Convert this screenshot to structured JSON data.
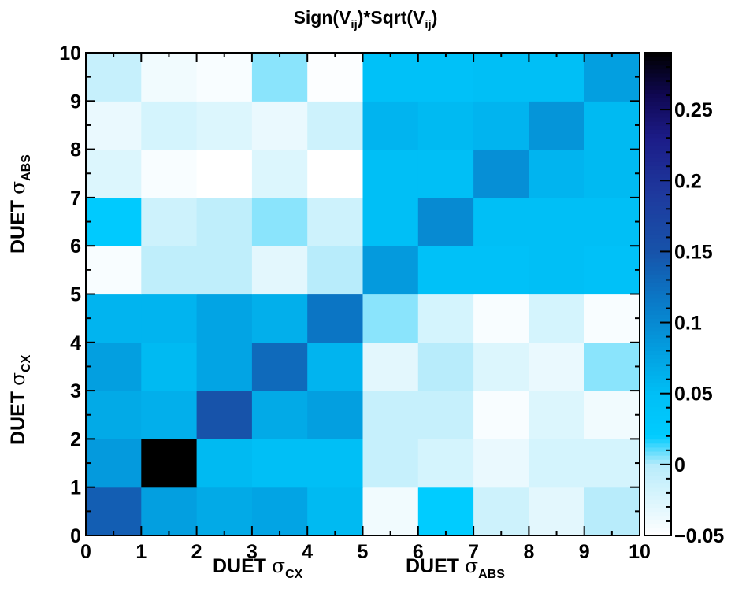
{
  "chart_data": {
    "type": "heatmap",
    "title": {
      "base": "Sign(V",
      "sub1": "ij",
      "mid": ")*Sqrt(V",
      "sub2": "ij",
      "end": ")"
    },
    "x_axis": {
      "range": [
        0,
        10
      ],
      "tick_labels": [
        "0",
        "1",
        "2",
        "3",
        "4",
        "5",
        "6",
        "7",
        "8",
        "9",
        "10"
      ],
      "labels": [
        {
          "prefix": "DUET ",
          "symbol": "σ",
          "subscript": "CX"
        },
        {
          "prefix": "DUET ",
          "symbol": "σ",
          "subscript": "ABS"
        }
      ]
    },
    "y_axis": {
      "range": [
        0,
        10
      ],
      "tick_labels": [
        "0",
        "1",
        "2",
        "3",
        "4",
        "5",
        "6",
        "7",
        "8",
        "9",
        "10"
      ],
      "labels": [
        {
          "prefix": "DUET ",
          "symbol": "σ",
          "subscript": "CX"
        },
        {
          "prefix": "DUET ",
          "symbol": "σ",
          "subscript": "ABS"
        }
      ]
    },
    "z_axis": {
      "range": [
        -0.05,
        0.29
      ],
      "tick_values": [
        -0.05,
        0,
        0.05,
        0.1,
        0.15,
        0.2,
        0.25
      ],
      "tick_labels": [
        "−0.05",
        "0",
        "0.05",
        "0.1",
        "0.15",
        "0.2",
        "0.25"
      ],
      "colormap_stops": [
        {
          "v": -0.05,
          "color": "#ffffff"
        },
        {
          "v": 0.0,
          "color": "#b8ecfb"
        },
        {
          "v": 0.02,
          "color": "#00ccff"
        },
        {
          "v": 0.05,
          "color": "#00bff6"
        },
        {
          "v": 0.08,
          "color": "#039fe0"
        },
        {
          "v": 0.12,
          "color": "#0b75c4"
        },
        {
          "v": 0.15,
          "color": "#1753aa"
        },
        {
          "v": 0.19,
          "color": "#1e3a9e"
        },
        {
          "v": 0.23,
          "color": "#1c1c88"
        },
        {
          "v": 0.26,
          "color": "#100854"
        },
        {
          "v": 0.29,
          "color": "#000000"
        }
      ]
    },
    "rows_bottom_to_top": [
      [
        0.14,
        0.08,
        0.07,
        0.075,
        0.055,
        -0.04,
        0.02,
        -0.015,
        -0.03,
        0.0
      ],
      [
        0.085,
        0.29,
        0.055,
        0.05,
        0.05,
        -0.01,
        -0.02,
        -0.035,
        -0.02,
        -0.02
      ],
      [
        0.07,
        0.065,
        0.15,
        0.07,
        0.08,
        -0.01,
        -0.01,
        -0.045,
        -0.025,
        -0.04
      ],
      [
        0.08,
        0.055,
        0.075,
        0.13,
        0.06,
        -0.03,
        0.0,
        -0.025,
        -0.035,
        0.005
      ],
      [
        0.06,
        0.06,
        0.075,
        0.065,
        0.12,
        0.005,
        -0.02,
        -0.045,
        -0.02,
        -0.045
      ],
      [
        -0.045,
        -0.005,
        -0.005,
        -0.03,
        0.0,
        0.085,
        0.045,
        0.045,
        0.05,
        0.045
      ],
      [
        0.025,
        -0.015,
        -0.005,
        0.005,
        -0.015,
        0.05,
        0.1,
        0.05,
        0.05,
        0.05
      ],
      [
        -0.025,
        -0.045,
        -0.05,
        -0.025,
        -0.05,
        0.05,
        0.05,
        0.095,
        0.06,
        0.055
      ],
      [
        -0.035,
        -0.02,
        -0.025,
        -0.035,
        -0.015,
        0.06,
        0.055,
        0.06,
        0.09,
        0.055
      ],
      [
        -0.01,
        -0.04,
        -0.045,
        0.005,
        -0.048,
        0.045,
        0.045,
        0.05,
        0.05,
        0.08
      ]
    ]
  }
}
